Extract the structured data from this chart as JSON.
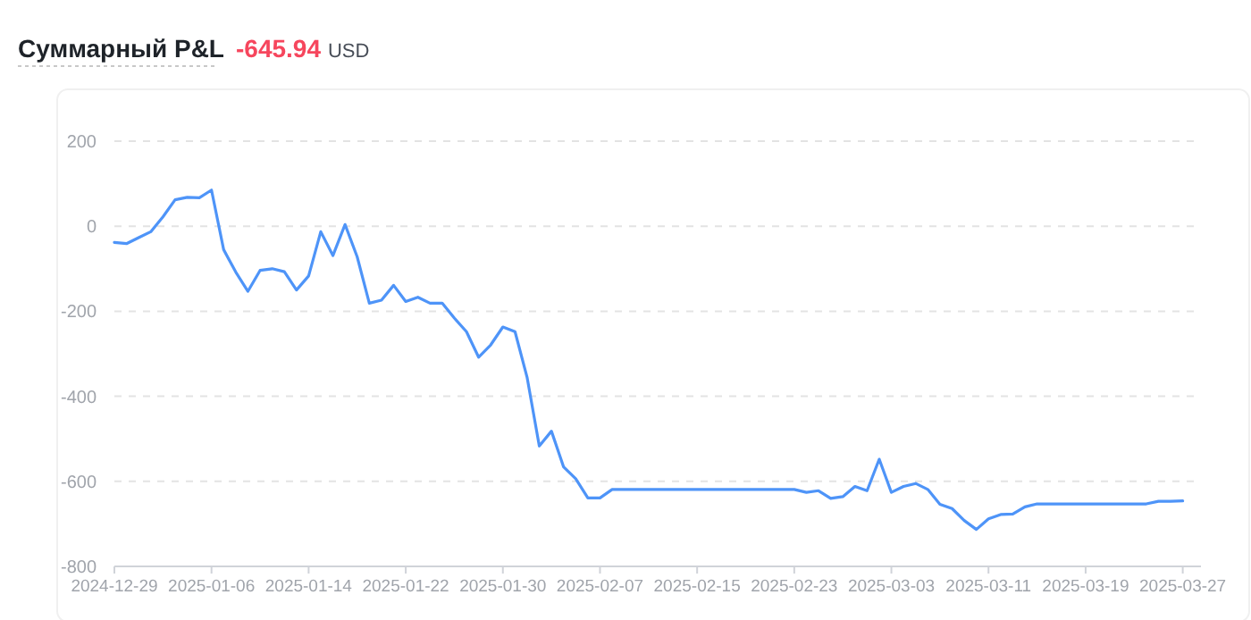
{
  "chart_data": {
    "type": "line",
    "title": "Суммарный P&L",
    "annotations": [
      "-645.94",
      "USD"
    ],
    "x": [
      "2024-12-29",
      "2024-12-30",
      "2024-12-31",
      "2025-01-01",
      "2025-01-02",
      "2025-01-03",
      "2025-01-04",
      "2025-01-05",
      "2025-01-06",
      "2025-01-07",
      "2025-01-08",
      "2025-01-09",
      "2025-01-10",
      "2025-01-11",
      "2025-01-12",
      "2025-01-13",
      "2025-01-14",
      "2025-01-15",
      "2025-01-16",
      "2025-01-17",
      "2025-01-18",
      "2025-01-19",
      "2025-01-20",
      "2025-01-21",
      "2025-01-22",
      "2025-01-23",
      "2025-01-24",
      "2025-01-25",
      "2025-01-26",
      "2025-01-27",
      "2025-01-28",
      "2025-01-29",
      "2025-01-30",
      "2025-01-31",
      "2025-02-01",
      "2025-02-02",
      "2025-02-03",
      "2025-02-04",
      "2025-02-05",
      "2025-02-06",
      "2025-02-07",
      "2025-02-08",
      "2025-02-09",
      "2025-02-10",
      "2025-02-11",
      "2025-02-12",
      "2025-02-13",
      "2025-02-14",
      "2025-02-15",
      "2025-02-16",
      "2025-02-17",
      "2025-02-18",
      "2025-02-19",
      "2025-02-20",
      "2025-02-21",
      "2025-02-22",
      "2025-02-23",
      "2025-02-24",
      "2025-02-25",
      "2025-02-26",
      "2025-02-27",
      "2025-02-28",
      "2025-03-01",
      "2025-03-02",
      "2025-03-03",
      "2025-03-04",
      "2025-03-05",
      "2025-03-06",
      "2025-03-07",
      "2025-03-08",
      "2025-03-09",
      "2025-03-10",
      "2025-03-11",
      "2025-03-12",
      "2025-03-13",
      "2025-03-14",
      "2025-03-15",
      "2025-03-16",
      "2025-03-17",
      "2025-03-18",
      "2025-03-19",
      "2025-03-20",
      "2025-03-21",
      "2025-03-22",
      "2025-03-23",
      "2025-03-24",
      "2025-03-25",
      "2025-03-26",
      "2025-03-27"
    ],
    "series": [
      {
        "color": "#4e94f8",
        "values": [
          -38,
          -41,
          -27,
          -13,
          22,
          62,
          68,
          67,
          85,
          -55,
          -108,
          -153,
          -104,
          -100,
          -107,
          -150,
          -117,
          -13,
          -69,
          4,
          -72,
          -181,
          -174,
          -139,
          -177,
          -167,
          -181,
          -181,
          -216,
          -248,
          -308,
          -279,
          -237,
          -248,
          -356,
          -517,
          -482,
          -566,
          -594,
          -639,
          -639,
          -619,
          -619,
          -619,
          -619,
          -619,
          -619,
          -619,
          -619,
          -619,
          -619,
          -619,
          -619,
          -619,
          -619,
          -619,
          -619,
          -626,
          -622,
          -640,
          -636,
          -612,
          -622,
          -548,
          -626,
          -612,
          -605,
          -619,
          -654,
          -664,
          -692,
          -713,
          -688,
          -678,
          -677,
          -660,
          -653,
          -653,
          -653,
          -653,
          -653,
          -653,
          -653,
          -653,
          -653,
          -653,
          -647,
          -647,
          -646
        ]
      }
    ],
    "xlim": [
      "2024-12-29",
      "2025-03-28T12:00"
    ],
    "xticks": [
      "2024-12-29",
      "2025-01-06",
      "2025-01-14",
      "2025-01-22",
      "2025-01-30",
      "2025-02-07",
      "2025-02-15",
      "2025-02-23",
      "2025-03-03",
      "2025-03-11",
      "2025-03-19",
      "2025-03-27"
    ],
    "ylim": [
      -800,
      200
    ],
    "yticks": [
      -800,
      -600,
      -400,
      -200,
      0,
      200
    ],
    "grid": "y",
    "marker": "none",
    "line_style": "solid"
  }
}
